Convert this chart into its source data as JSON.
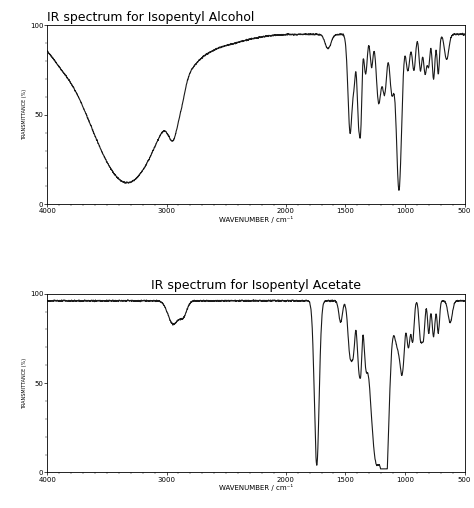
{
  "title1": "IR spectrum for Isopentyl Alcohol",
  "title2": "IR spectrum for Isopentyl Acetate",
  "xlabel": "WAVENUMBER / cm⁻¹",
  "ylabel": "TRANSMITTANCE (%)",
  "xmin": 500,
  "xmax": 4000,
  "ymin": 0,
  "ymax": 100,
  "xticks": [
    4000,
    3000,
    2000,
    1500,
    1000,
    500
  ],
  "yticks": [
    0,
    50,
    100
  ],
  "line_color": "#1a1a1a",
  "line_width": 0.8,
  "title1_loc": "left",
  "title2_loc": "center",
  "title_fontsize": 9
}
